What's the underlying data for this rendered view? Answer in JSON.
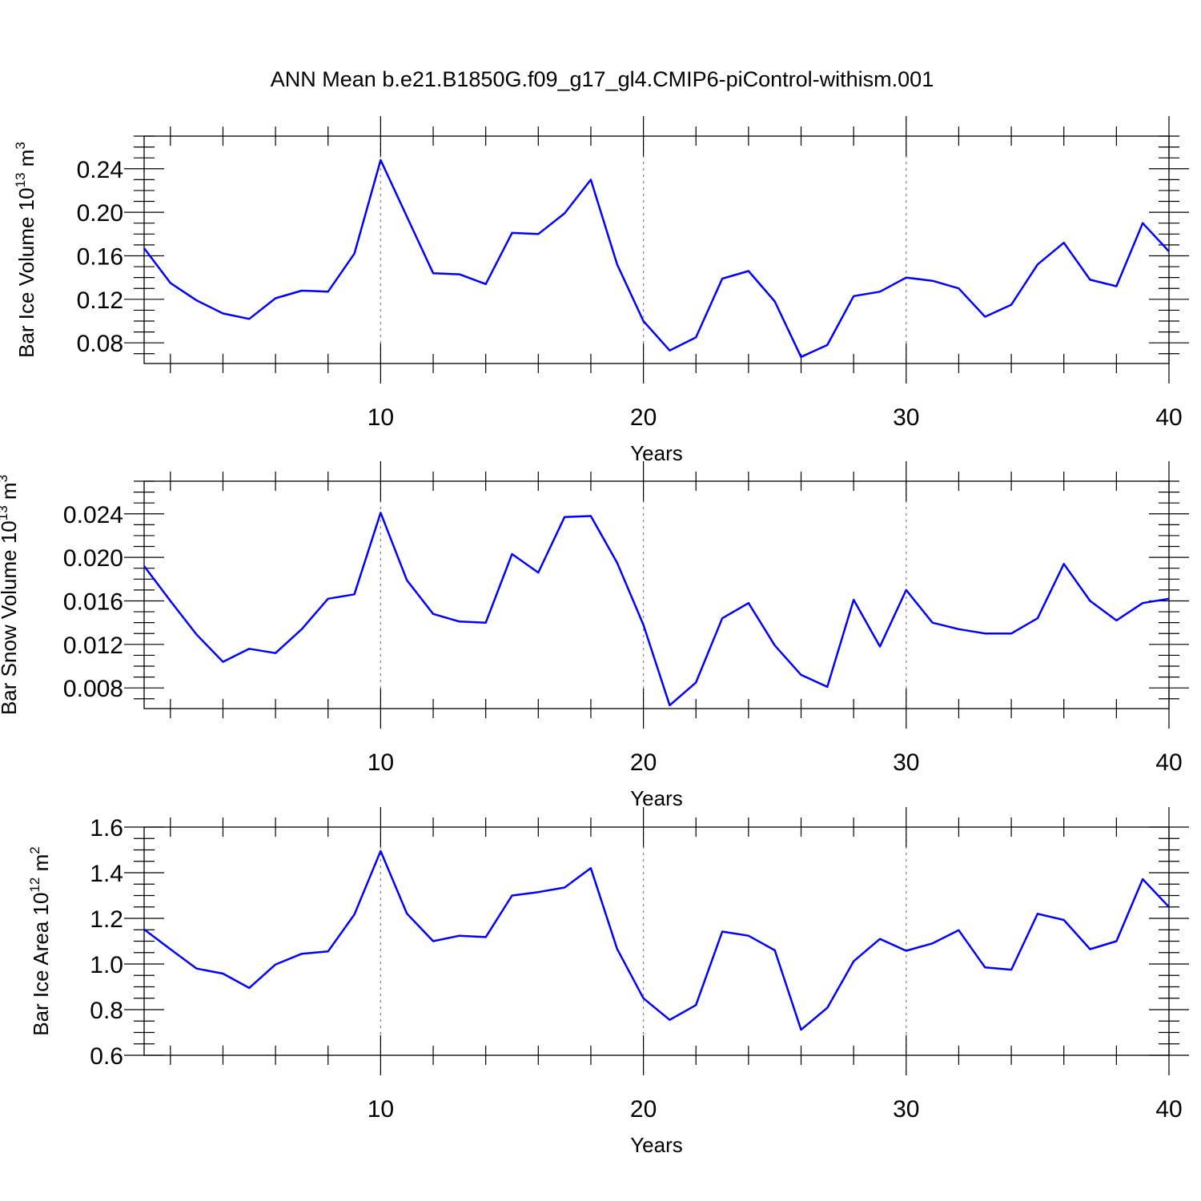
{
  "title": "ANN Mean b.e21.B1850G.f09_g17_gl4.CMIP6-piControl-withism.001",
  "line_color": "#0000ff",
  "chart_data": [
    {
      "type": "line",
      "ylabel": "Bar Ice Volume 10",
      "ylabel_exp": "13",
      "ylabel_unit": "m",
      "ylabel_unit_exp": "3",
      "xlabel": "Years",
      "xlim": [
        1,
        40
      ],
      "ylim": [
        0.061,
        0.27
      ],
      "y_ticks": [
        0.08,
        0.12,
        0.16,
        0.2,
        0.24
      ],
      "y_tick_labels": [
        "0.08",
        "0.12",
        "0.16",
        "0.20",
        "0.24"
      ],
      "y_minor_step": 0.01,
      "x_ticks": [
        10,
        20,
        30,
        40
      ],
      "x_tick_labels": [
        "10",
        "20",
        "30",
        "40"
      ],
      "grid_x": [
        10,
        20,
        30
      ],
      "x": [
        1,
        2,
        3,
        4,
        5,
        6,
        7,
        8,
        9,
        10,
        11,
        12,
        13,
        14,
        15,
        16,
        17,
        18,
        19,
        20,
        21,
        22,
        23,
        24,
        25,
        26,
        27,
        28,
        29,
        30,
        31,
        32,
        33,
        34,
        35,
        36,
        37,
        38,
        39,
        40
      ],
      "values": [
        0.167,
        0.135,
        0.119,
        0.107,
        0.102,
        0.121,
        0.128,
        0.127,
        0.162,
        0.248,
        0.196,
        0.144,
        0.143,
        0.134,
        0.181,
        0.18,
        0.199,
        0.23,
        0.152,
        0.1,
        0.073,
        0.085,
        0.139,
        0.146,
        0.118,
        0.067,
        0.078,
        0.123,
        0.127,
        0.14,
        0.137,
        0.13,
        0.104,
        0.115,
        0.152,
        0.172,
        0.138,
        0.132,
        0.19,
        0.164
      ]
    },
    {
      "type": "line",
      "ylabel": "Bar Snow Volume 10",
      "ylabel_exp": "13",
      "ylabel_unit": "m",
      "ylabel_unit_exp": "3",
      "xlabel": "Years",
      "xlim": [
        1,
        40
      ],
      "ylim": [
        0.0061,
        0.027
      ],
      "y_ticks": [
        0.008,
        0.012,
        0.016,
        0.02,
        0.024
      ],
      "y_tick_labels": [
        "0.008",
        "0.012",
        "0.016",
        "0.020",
        "0.024"
      ],
      "y_minor_step": 0.001,
      "x_ticks": [
        10,
        20,
        30,
        40
      ],
      "x_tick_labels": [
        "10",
        "20",
        "30",
        "40"
      ],
      "grid_x": [
        10,
        20,
        30
      ],
      "x": [
        1,
        2,
        3,
        4,
        5,
        6,
        7,
        8,
        9,
        10,
        11,
        12,
        13,
        14,
        15,
        16,
        17,
        18,
        19,
        20,
        21,
        22,
        23,
        24,
        25,
        26,
        27,
        28,
        29,
        30,
        31,
        32,
        33,
        34,
        35,
        36,
        37,
        38,
        39,
        40
      ],
      "values": [
        0.0192,
        0.016,
        0.0129,
        0.0104,
        0.0116,
        0.0112,
        0.0134,
        0.0162,
        0.0166,
        0.0241,
        0.0179,
        0.0148,
        0.0141,
        0.014,
        0.0203,
        0.0186,
        0.0237,
        0.0238,
        0.0195,
        0.0138,
        0.0064,
        0.0085,
        0.0144,
        0.0158,
        0.0119,
        0.0092,
        0.0081,
        0.0161,
        0.0118,
        0.017,
        0.014,
        0.0134,
        0.013,
        0.013,
        0.0144,
        0.0194,
        0.016,
        0.0142,
        0.0158,
        0.0162
      ]
    },
    {
      "type": "line",
      "ylabel": "Bar Ice Area 10",
      "ylabel_exp": "12",
      "ylabel_unit": "m",
      "ylabel_unit_exp": "2",
      "xlabel": "Years",
      "xlim": [
        1,
        40
      ],
      "ylim": [
        0.6,
        1.6
      ],
      "y_ticks": [
        0.6,
        0.8,
        1.0,
        1.2,
        1.4,
        1.6
      ],
      "y_tick_labels": [
        "0.6",
        "0.8",
        "1.0",
        "1.2",
        "1.4",
        "1.6"
      ],
      "y_minor_step": 0.05,
      "x_ticks": [
        10,
        20,
        30,
        40
      ],
      "x_tick_labels": [
        "10",
        "20",
        "30",
        "40"
      ],
      "grid_x": [
        10,
        20,
        30
      ],
      "x": [
        1,
        2,
        3,
        4,
        5,
        6,
        7,
        8,
        9,
        10,
        11,
        12,
        13,
        14,
        15,
        16,
        17,
        18,
        19,
        20,
        21,
        22,
        23,
        24,
        25,
        26,
        27,
        28,
        29,
        30,
        31,
        32,
        33,
        34,
        35,
        36,
        37,
        38,
        39,
        40
      ],
      "values": [
        1.152,
        1.065,
        0.98,
        0.958,
        0.895,
        0.998,
        1.045,
        1.055,
        1.217,
        1.495,
        1.221,
        1.1,
        1.124,
        1.118,
        1.3,
        1.315,
        1.335,
        1.42,
        1.066,
        0.85,
        0.755,
        0.82,
        1.142,
        1.124,
        1.06,
        0.712,
        0.808,
        1.012,
        1.11,
        1.058,
        1.09,
        1.148,
        0.985,
        0.975,
        1.22,
        1.193,
        1.065,
        1.1,
        1.372,
        1.25
      ]
    }
  ]
}
